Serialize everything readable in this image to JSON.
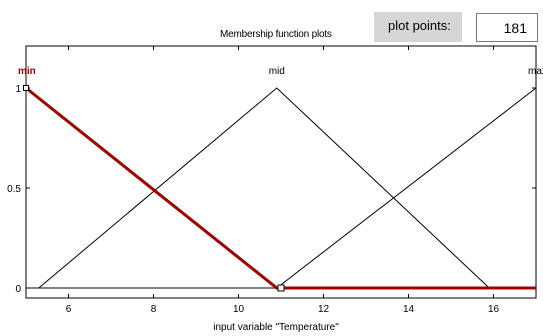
{
  "header": {
    "title": "Membership function plots",
    "plot_points_label": "plot points:",
    "plot_points_value": "181"
  },
  "colors": {
    "selected": "#a00000",
    "normal": "#000000",
    "label_panel": "#d6d6d6"
  },
  "chart_data": {
    "type": "line",
    "title": "Membership function plots",
    "xlabel": "input variable \"Temperature\"",
    "ylabel": "",
    "xlim": [
      5,
      17
    ],
    "ylim": [
      0,
      1
    ],
    "x_ticks": [
      6,
      8,
      10,
      12,
      14,
      16
    ],
    "y_ticks": [
      0,
      0.5,
      1
    ],
    "y_tick_labels": [
      "0",
      "0.5",
      "1"
    ],
    "grid": false,
    "series": [
      {
        "name": "min",
        "type": "trimf",
        "points": [
          [
            5,
            1
          ],
          [
            10.9,
            0
          ],
          [
            17,
            0
          ]
        ],
        "selected": true
      },
      {
        "name": "mid",
        "type": "trimf",
        "points": [
          [
            5.3,
            0
          ],
          [
            10.9,
            1
          ],
          [
            15.9,
            0
          ]
        ],
        "selected": false
      },
      {
        "name": "max",
        "type": "trimf",
        "points": [
          [
            5,
            0
          ],
          [
            10.9,
            0
          ],
          [
            17,
            1
          ]
        ],
        "selected": false
      }
    ],
    "marker": {
      "x": 11.0,
      "y": 0
    }
  }
}
